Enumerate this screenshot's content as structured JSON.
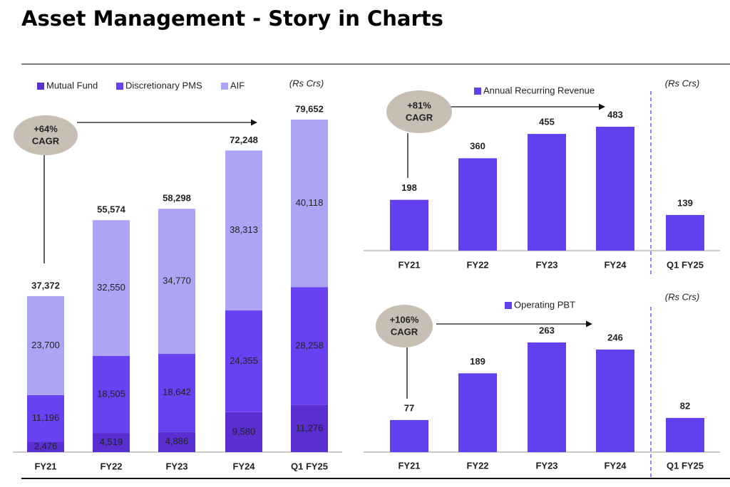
{
  "title": "Asset Management - Story in Charts",
  "chart_data": [
    {
      "type": "stacked-bar",
      "unit": "(Rs Crs)",
      "annotation": [
        "+64%",
        "CAGR"
      ],
      "categories": [
        "FY21",
        "FY22",
        "FY23",
        "FY24",
        "Q1 FY25"
      ],
      "series": [
        {
          "name": "Mutual Fund",
          "color": "#5a2fd2",
          "values": [
            2476,
            4519,
            4886,
            9580,
            11276
          ],
          "value_labels": [
            "2,476",
            "4,519",
            "4,886",
            "9,580",
            "11,276"
          ]
        },
        {
          "name": "Discretionary PMS",
          "color": "#6a41f2",
          "values": [
            11196,
            18505,
            18642,
            24355,
            28258
          ],
          "value_labels": [
            "11,196",
            "18,505",
            "18,642",
            "24,355",
            "28,258"
          ]
        },
        {
          "name": "AIF",
          "color": "#aca5f6",
          "values": [
            23700,
            32550,
            34770,
            38313,
            40118
          ],
          "value_labels": [
            "23,700",
            "32,550",
            "34,770",
            "38,313",
            "40,118"
          ]
        }
      ],
      "totals": [
        37372,
        55574,
        58298,
        72248,
        79652
      ],
      "total_labels": [
        "37,372",
        "55,574",
        "58,298",
        "72,248",
        "79,652"
      ]
    },
    {
      "type": "bar",
      "unit": "(Rs Crs)",
      "annotation": [
        "+81%",
        "CAGR"
      ],
      "categories": [
        "FY21",
        "FY22",
        "FY23",
        "FY24",
        "Q1 FY25"
      ],
      "series": [
        {
          "name": "Annual Recurring Revenue",
          "color": "#6240f0",
          "values": [
            198,
            360,
            455,
            483,
            139
          ]
        }
      ]
    },
    {
      "type": "bar",
      "unit": "(Rs Crs)",
      "annotation": [
        "+106%",
        "CAGR"
      ],
      "categories": [
        "FY21",
        "FY22",
        "FY23",
        "FY24",
        "Q1 FY25"
      ],
      "series": [
        {
          "name": "Operating PBT",
          "color": "#6240f0",
          "values": [
            77,
            189,
            263,
            246,
            82
          ]
        }
      ]
    }
  ]
}
